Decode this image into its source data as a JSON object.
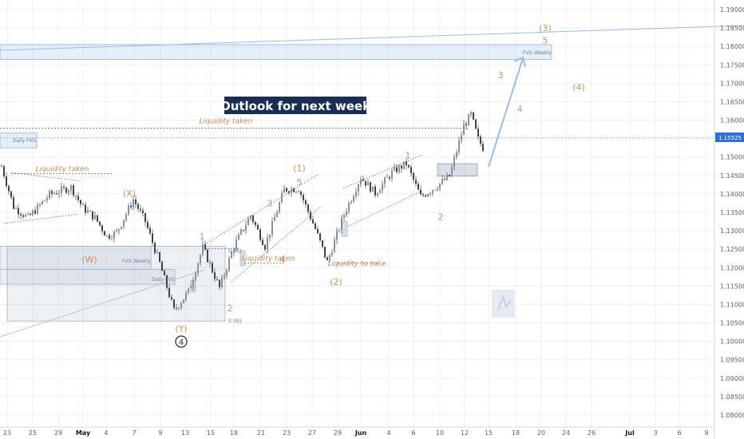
{
  "title": "Outlook for next week",
  "current_price": "1.15525",
  "chart_data": {
    "type": "candlestick",
    "yaxis": {
      "ticks": [
        "1.19000",
        "1.18500",
        "1.18000",
        "1.17500",
        "1.17000",
        "1.16500",
        "1.16000",
        "1.15500",
        "1.15000",
        "1.14500",
        "1.14000",
        "1.13500",
        "1.13000",
        "1.12500",
        "1.12000",
        "1.11500",
        "1.11000",
        "1.10500",
        "1.10000",
        "1.09500",
        "1.09000",
        "1.08500",
        "1.08000"
      ],
      "range": [
        1.077,
        1.1923
      ]
    },
    "xaxis": {
      "ticks": [
        {
          "label": "23",
          "bold": false
        },
        {
          "label": "25",
          "bold": false
        },
        {
          "label": "29",
          "bold": false
        },
        {
          "label": "May",
          "bold": true
        },
        {
          "label": "4",
          "bold": false
        },
        {
          "label": "7",
          "bold": false
        },
        {
          "label": "9",
          "bold": false
        },
        {
          "label": "13",
          "bold": false
        },
        {
          "label": "15",
          "bold": false
        },
        {
          "label": "18",
          "bold": false
        },
        {
          "label": "21",
          "bold": false
        },
        {
          "label": "23",
          "bold": false
        },
        {
          "label": "27",
          "bold": false
        },
        {
          "label": "29",
          "bold": false
        },
        {
          "label": "Jun",
          "bold": true
        },
        {
          "label": "4",
          "bold": false
        },
        {
          "label": "6",
          "bold": false
        },
        {
          "label": "10",
          "bold": false
        },
        {
          "label": "12",
          "bold": false
        },
        {
          "label": "15",
          "bold": false
        },
        {
          "label": "18",
          "bold": false
        },
        {
          "label": "20",
          "bold": false
        },
        {
          "label": "24",
          "bold": false
        },
        {
          "label": "26",
          "bold": false
        },
        {
          "label": "Jul",
          "bold": true
        },
        {
          "label": "3",
          "bold": false
        },
        {
          "label": "6",
          "bold": false
        },
        {
          "label": "9",
          "bold": false
        }
      ]
    },
    "price_path": [
      {
        "i": 0,
        "p": 1.1475
      },
      {
        "i": 5,
        "p": 1.1365
      },
      {
        "i": 11,
        "p": 1.1335
      },
      {
        "i": 20,
        "p": 1.1398
      },
      {
        "i": 29,
        "p": 1.1418
      },
      {
        "i": 34,
        "p": 1.1362
      },
      {
        "i": 39,
        "p": 1.1335
      },
      {
        "i": 44,
        "p": 1.1285
      },
      {
        "i": 48,
        "p": 1.1295
      },
      {
        "i": 55,
        "p": 1.1385
      },
      {
        "i": 60,
        "p": 1.1325
      },
      {
        "i": 66,
        "p": 1.1212
      },
      {
        "i": 72,
        "p": 1.1083
      },
      {
        "i": 78,
        "p": 1.1135
      },
      {
        "i": 84,
        "p": 1.1255
      },
      {
        "i": 91,
        "p": 1.1145
      },
      {
        "i": 97,
        "p": 1.1258
      },
      {
        "i": 104,
        "p": 1.1342
      },
      {
        "i": 110,
        "p": 1.1258
      },
      {
        "i": 118,
        "p": 1.1412
      },
      {
        "i": 124,
        "p": 1.1415
      },
      {
        "i": 131,
        "p": 1.1305
      },
      {
        "i": 136,
        "p": 1.1215
      },
      {
        "i": 143,
        "p": 1.1345
      },
      {
        "i": 150,
        "p": 1.1445
      },
      {
        "i": 156,
        "p": 1.1402
      },
      {
        "i": 163,
        "p": 1.1458
      },
      {
        "i": 169,
        "p": 1.1482
      },
      {
        "i": 175,
        "p": 1.1392
      },
      {
        "i": 181,
        "p": 1.1418
      },
      {
        "i": 187,
        "p": 1.1448
      },
      {
        "i": 193,
        "p": 1.1585
      },
      {
        "i": 196,
        "p": 1.1615
      },
      {
        "i": 199,
        "p": 1.1548
      },
      {
        "i": 201,
        "p": 1.1525
      }
    ],
    "zones": [
      {
        "name": "FVG Weekly",
        "top": 1.1805,
        "bottom": 1.1765,
        "label_price": 1.1783
      },
      {
        "name": "Daily FVG",
        "top": 1.1565,
        "bottom": 1.1525,
        "label_price": 1.1545
      },
      {
        "name": "FVG Weekly",
        "top": 1.1258,
        "bottom": 1.1195,
        "label_price": 1.1218
      },
      {
        "name": "Daily FVG",
        "top": 1.1195,
        "bottom": 1.1155,
        "label_price": 1.1168
      }
    ],
    "fib_levels": [
      {
        "label": "0.382",
        "price": 1.1055
      },
      {
        "label": "0.382",
        "price": 1.1245
      }
    ],
    "annotations": [
      {
        "text": "Liquidity taken",
        "price": 1.1585
      },
      {
        "text": "Liquidity taken",
        "price": 1.1455
      },
      {
        "text": "Liquidity taken",
        "price": 1.1212
      },
      {
        "text": "Liquidity to take",
        "price": 1.1198
      }
    ],
    "wave_labels": [
      {
        "text": "(3)",
        "price": 1.185
      },
      {
        "text": "5",
        "price": 1.1817
      },
      {
        "text": "3",
        "price": 1.1722
      },
      {
        "text": "(4)",
        "price": 1.169
      },
      {
        "text": "4",
        "price": 1.163
      },
      {
        "text": "1",
        "price": 1.1505
      },
      {
        "text": "(1)",
        "price": 1.147
      },
      {
        "text": "5",
        "price": 1.1432
      },
      {
        "text": "(X)",
        "price": 1.1402
      },
      {
        "text": "3",
        "price": 1.1375
      },
      {
        "text": "2",
        "price": 1.1338
      },
      {
        "text": "1",
        "price": 1.1285
      },
      {
        "text": "(W)",
        "price": 1.1222
      },
      {
        "text": "4",
        "price": 1.1222
      },
      {
        "text": "(2)",
        "price": 1.1162
      },
      {
        "text": "2",
        "price": 1.109
      },
      {
        "text": "(Y)",
        "price": 1.1035
      }
    ],
    "circled_label": {
      "text": "4",
      "price": 1.0995
    }
  }
}
